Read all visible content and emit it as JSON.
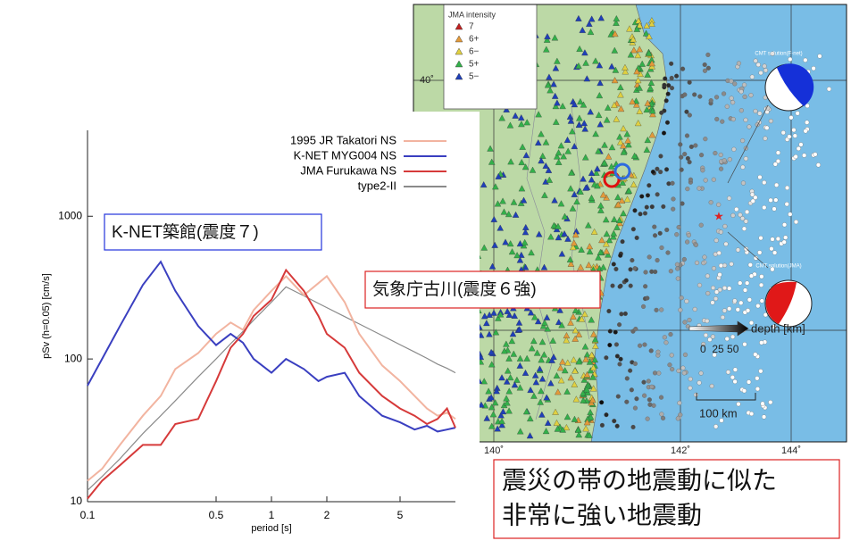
{
  "chart_data": {
    "type": "line",
    "xlabel": "period [s]",
    "ylabel": "pSv (h=0.05) [cm/s]",
    "log_x": true,
    "log_y": true,
    "xlim": [
      0.1,
      10
    ],
    "ylim": [
      10,
      4000
    ],
    "xticks": [
      0.1,
      0.5,
      1,
      2,
      5
    ],
    "yticks": [
      10,
      100,
      1000
    ],
    "legend": "upper right",
    "x": [
      0.1,
      0.12,
      0.15,
      0.2,
      0.25,
      0.3,
      0.4,
      0.5,
      0.6,
      0.7,
      0.8,
      1,
      1.2,
      1.5,
      1.8,
      2,
      2.5,
      3,
      4,
      5,
      6,
      7,
      8,
      9,
      10
    ],
    "series": [
      {
        "name": "1995 JR Takatori NS",
        "color": "#f2b4a0",
        "values": [
          14,
          17,
          25,
          40,
          55,
          85,
          110,
          150,
          180,
          160,
          220,
          300,
          380,
          280,
          340,
          380,
          250,
          150,
          90,
          70,
          55,
          45,
          40,
          42,
          38
        ]
      },
      {
        "name": "K-NET MYG004 NS",
        "color": "#3a3fc0",
        "values": [
          65,
          100,
          170,
          330,
          480,
          300,
          170,
          125,
          150,
          130,
          100,
          80,
          100,
          85,
          70,
          75,
          80,
          55,
          40,
          36,
          32,
          34,
          31,
          32,
          33
        ]
      },
      {
        "name": "JMA Furukawa NS",
        "color": "#d63a3a",
        "values": [
          10.5,
          14,
          18,
          25,
          25,
          35,
          38,
          70,
          120,
          150,
          200,
          260,
          420,
          300,
          200,
          150,
          120,
          80,
          55,
          45,
          40,
          35,
          38,
          45,
          33
        ]
      },
      {
        "name": "type2-II",
        "color": "#8a8a8a",
        "values": [
          12,
          15,
          20,
          30,
          40,
          51,
          75,
          100,
          128,
          156,
          187,
          250,
          320,
          277,
          245,
          229,
          198,
          176,
          146,
          126,
          112,
          101,
          92,
          86,
          80
        ]
      }
    ]
  },
  "callouts": [
    "K-NET築館(震度７)",
    "気象庁古川(震度６強)"
  ],
  "note": [
    "震災の帯の地震動に似た",
    "非常に強い地震動"
  ],
  "map": {
    "legend_title": "JMA intensity",
    "legend_items": [
      "7",
      "6+",
      "6−",
      "5+",
      "5−"
    ],
    "cmt_labels": [
      "CMT solution(F-net)",
      "CMT solution(JMA)"
    ],
    "depth_label": "depth [km]",
    "depth_scale": "0  25 50",
    "scale_label": "100 km",
    "lat_labels": [
      "40˚"
    ],
    "lon_labels": [
      "140˚",
      "142˚",
      "144˚"
    ]
  }
}
